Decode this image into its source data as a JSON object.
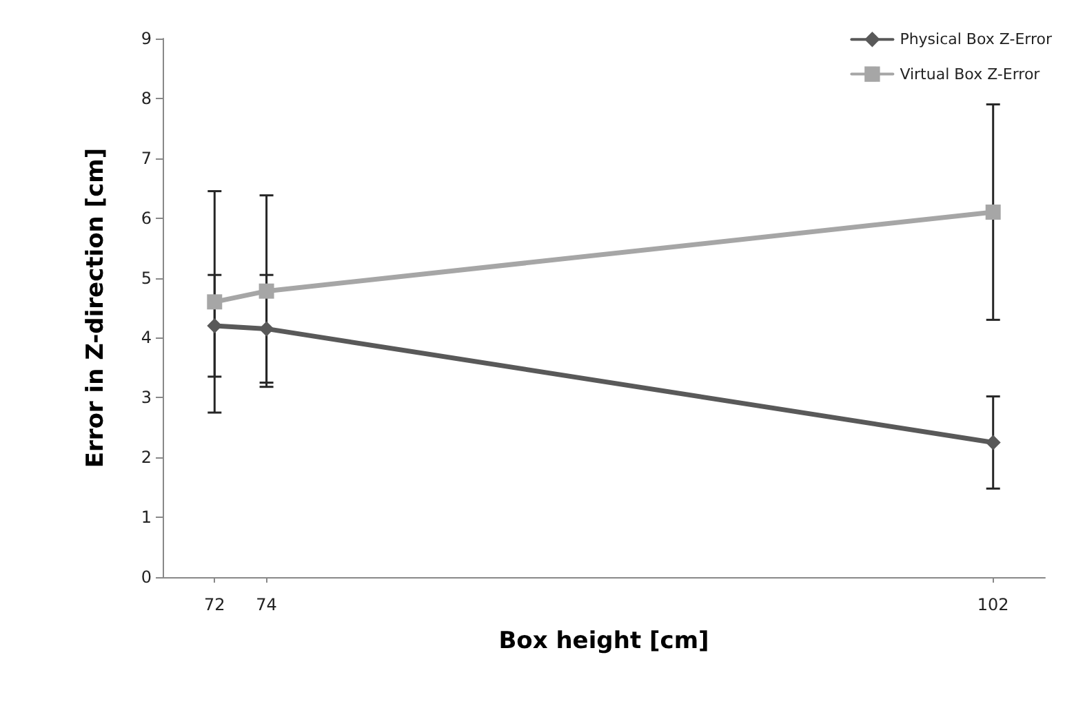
{
  "chart_data": {
    "type": "line",
    "xlabel": "Box height [cm]",
    "ylabel": "Error in Z-direction [cm]",
    "x": [
      72,
      74,
      102
    ],
    "xlim": [
      70,
      104
    ],
    "xticks": [
      72,
      74,
      102
    ],
    "ylim": [
      0,
      9
    ],
    "yticks": [
      0,
      1,
      2,
      3,
      4,
      5,
      6,
      7,
      8,
      9
    ],
    "grid": false,
    "legend": "top right",
    "line_style": "solid",
    "series": [
      {
        "name": "Physical Box Z-Error",
        "color": "#595959",
        "marker": "diamond",
        "values": [
          4.2,
          4.15,
          2.25
        ],
        "errors": [
          0.85,
          0.9,
          0.77
        ]
      },
      {
        "name": "Virtual Box Z-Error",
        "color": "#a6a6a6",
        "marker": "square",
        "values": [
          4.6,
          4.78,
          6.1
        ],
        "errors": [
          1.85,
          1.6,
          1.8
        ]
      }
    ]
  }
}
